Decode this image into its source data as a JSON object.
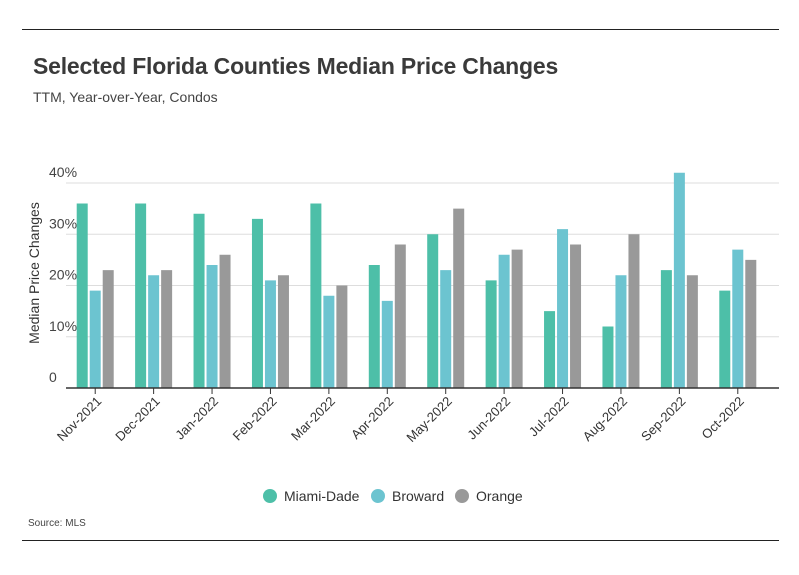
{
  "chart_data": {
    "type": "bar",
    "title": "Selected Florida Counties Median Price Changes",
    "subtitle": "TTM, Year-over-Year, Condos",
    "xlabel": "",
    "ylabel": "Median Price Changes",
    "ylim": [
      0,
      40
    ],
    "yticks": [
      {
        "value": 0,
        "label": "0"
      },
      {
        "value": 10,
        "label": "10%"
      },
      {
        "value": 20,
        "label": "20%"
      },
      {
        "value": 30,
        "label": "30%"
      },
      {
        "value": 40,
        "label": "40%"
      }
    ],
    "grid": true,
    "legend_position": "bottom",
    "categories": [
      "Nov-2021",
      "Dec-2021",
      "Jan-2022",
      "Feb-2022",
      "Mar-2022",
      "Apr-2022",
      "May-2022",
      "Jun-2022",
      "Jul-2022",
      "Aug-2022",
      "Sep-2022",
      "Oct-2022"
    ],
    "series": [
      {
        "name": "Miami-Dade",
        "color": "#4dbfa8",
        "values": [
          36,
          36,
          34,
          33,
          36,
          24,
          30,
          21,
          15,
          12,
          23,
          19
        ]
      },
      {
        "name": "Broward",
        "color": "#6cc4d0",
        "values": [
          19,
          22,
          24,
          21,
          18,
          17,
          23,
          26,
          31,
          22,
          42,
          27
        ]
      },
      {
        "name": "Orange",
        "color": "#999999",
        "values": [
          23,
          23,
          26,
          22,
          20,
          28,
          35,
          27,
          28,
          30,
          22,
          25
        ]
      }
    ],
    "source": "Source: MLS"
  },
  "colors": {
    "grid": "#dddddd",
    "axis": "#333333",
    "rule": "#222222"
  }
}
